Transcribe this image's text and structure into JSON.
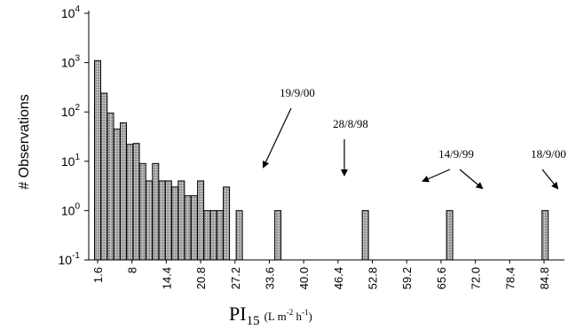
{
  "chart_data": {
    "type": "bar",
    "yscale": "log",
    "ylim_exp": [
      -1,
      4
    ],
    "ylabel": "# Observations",
    "xlabel": {
      "main": "PI",
      "sub": "15",
      "unit_l": "(L m",
      "unit_e1": "-2",
      "unit_m": " h",
      "unit_e2": "-1",
      "unit_r": ")"
    },
    "x_tick_labels": [
      "1.6",
      "8",
      "14.4",
      "20.8",
      "27.2",
      "33.6",
      "40.0",
      "46.4",
      "52.8",
      "59.2",
      "65.6",
      "72.0",
      "78.4",
      "84.8"
    ],
    "bins": [
      {
        "x": 1.6,
        "value": 1100
      },
      {
        "x": 2.8,
        "value": 240
      },
      {
        "x": 4.0,
        "value": 95
      },
      {
        "x": 5.2,
        "value": 45
      },
      {
        "x": 6.4,
        "value": 60
      },
      {
        "x": 7.6,
        "value": 22
      },
      {
        "x": 8.8,
        "value": 23
      },
      {
        "x": 10.0,
        "value": 9
      },
      {
        "x": 11.2,
        "value": 4
      },
      {
        "x": 12.4,
        "value": 9
      },
      {
        "x": 13.6,
        "value": 4
      },
      {
        "x": 14.8,
        "value": 4
      },
      {
        "x": 16.0,
        "value": 3
      },
      {
        "x": 17.2,
        "value": 4
      },
      {
        "x": 18.4,
        "value": 2
      },
      {
        "x": 19.6,
        "value": 2
      },
      {
        "x": 20.8,
        "value": 4
      },
      {
        "x": 22.0,
        "value": 1
      },
      {
        "x": 23.2,
        "value": 1
      },
      {
        "x": 24.4,
        "value": 1
      },
      {
        "x": 25.6,
        "value": 3
      },
      {
        "x": 28.0,
        "value": 1
      },
      {
        "x": 35.2,
        "value": 1
      },
      {
        "x": 51.5,
        "value": 1
      },
      {
        "x": 67.2,
        "value": 1
      },
      {
        "x": 85.0,
        "value": 1
      }
    ],
    "annotations": [
      {
        "text": "19/9/00",
        "arrow_to_x": 30.6
      },
      {
        "text": "28/8/98",
        "arrow_to_x": 35.2
      },
      {
        "text": "14/9/99",
        "arrow_to_x": 52.5
      },
      {
        "text": "14/9/99",
        "arrow_to_x": 67.2
      },
      {
        "text": "18/9/00",
        "arrow_to_x": 85.0
      }
    ]
  }
}
